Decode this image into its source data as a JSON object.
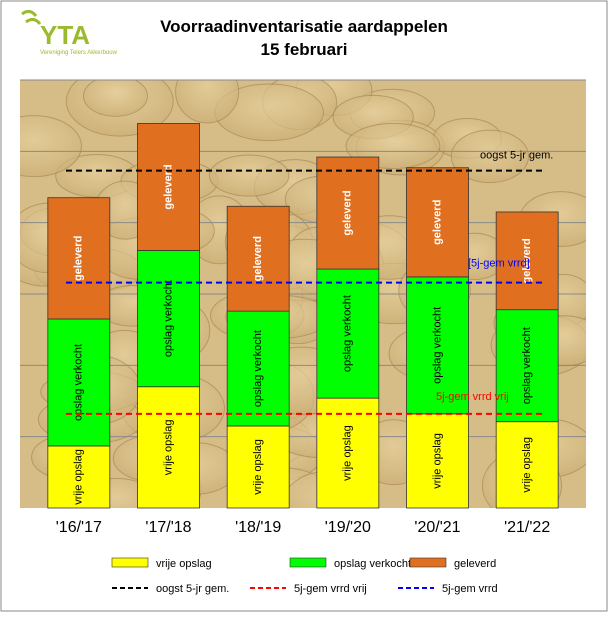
{
  "chart_data": {
    "type": "stacked-bar",
    "title": "Voorraadinventarisatie aardappelen",
    "subtitle": "15 februari",
    "logo": {
      "text": "YTA",
      "subtext": "Vereniging Telers Akkerbouw"
    },
    "categories": [
      "'16/'17",
      "'17/'18",
      "'18/'19",
      "'19/'20",
      "'20/'21",
      "'21/'22"
    ],
    "series": [
      {
        "name": "vrije opslag",
        "color": "#ffff00",
        "values": [
          0.87,
          1.7,
          1.15,
          1.54,
          1.32,
          1.21
        ]
      },
      {
        "name": "opslag verkocht",
        "color": "#00ff00",
        "values": [
          1.78,
          1.91,
          1.61,
          1.81,
          1.92,
          1.57
        ]
      },
      {
        "name": "geleverd",
        "color": "#e07020",
        "values": [
          1.7,
          1.78,
          1.47,
          1.57,
          1.53,
          1.37
        ]
      }
    ],
    "reference_lines": [
      {
        "name": "oogst 5-jr gem.",
        "color": "#000000",
        "value": 4.73,
        "annotation": "oogst 5-jr gem."
      },
      {
        "name": "5j-gem vrrd vrij",
        "color": "#ff0000",
        "value": 1.32,
        "annotation": "5j-gem vrrd vrij"
      },
      {
        "name": "5j-gem vrrd",
        "color": "#0000ff",
        "value": 3.16,
        "annotation": "[5j-gem vrrd]"
      }
    ],
    "ylim": [
      0,
      6
    ],
    "gridlines": [
      1,
      2,
      3,
      4,
      5,
      6
    ],
    "grid": true
  }
}
